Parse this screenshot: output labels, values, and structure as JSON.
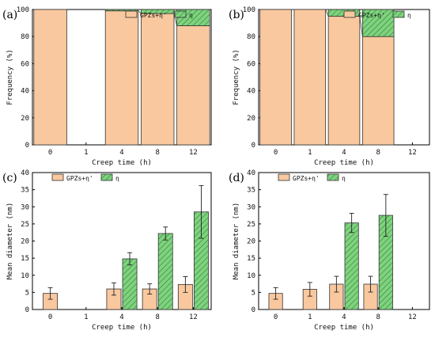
{
  "colors": {
    "orange": "#F9C89F",
    "green": "#7FD37F",
    "line": "#333333"
  },
  "chart_data": [
    {
      "type": "bar",
      "stacked": true,
      "panel_label": "(a)",
      "categories": [
        "0",
        "1",
        "4",
        "8",
        "12"
      ],
      "xlabel": "Creep time (h)",
      "ylabel": "Frequency (%)",
      "ylim": [
        0,
        100
      ],
      "yticks": [
        0,
        20,
        40,
        60,
        80,
        100
      ],
      "legend": {
        "position": "top-right"
      },
      "series": [
        {
          "name": "GPZs+η'",
          "values": [
            100,
            0,
            99,
            97,
            88
          ]
        },
        {
          "name": "η",
          "values": [
            0,
            0,
            1,
            3,
            12
          ]
        }
      ]
    },
    {
      "type": "bar",
      "stacked": true,
      "panel_label": "(b)",
      "categories": [
        "0",
        "1",
        "4",
        "8",
        "12"
      ],
      "xlabel": "Creep time (h)",
      "ylabel": "Frequency (%)",
      "ylim": [
        0,
        100
      ],
      "yticks": [
        0,
        20,
        40,
        60,
        80,
        100
      ],
      "legend": {
        "position": "top-right"
      },
      "series": [
        {
          "name": "GPZs+η'",
          "values": [
            100,
            100,
            95,
            80,
            0
          ]
        },
        {
          "name": "η",
          "values": [
            0,
            0,
            5,
            20,
            0
          ]
        }
      ]
    },
    {
      "type": "bar",
      "grouped": true,
      "panel_label": "(c)",
      "categories": [
        "0",
        "1",
        "4",
        "8",
        "12"
      ],
      "xlabel": "Creep time (h)",
      "ylabel": "Mean diameter (nm)",
      "ylim": [
        0,
        40
      ],
      "yticks": [
        0,
        5,
        10,
        15,
        20,
        25,
        30,
        35,
        40
      ],
      "legend": {
        "position": "top-left"
      },
      "series": [
        {
          "name": "GPZs+η'",
          "values": [
            4.7,
            null,
            6.0,
            6.0,
            7.3
          ],
          "errors": [
            1.7,
            null,
            1.8,
            1.5,
            2.3
          ]
        },
        {
          "name": "η",
          "values": [
            null,
            null,
            14.8,
            22.2,
            28.5
          ],
          "errors": [
            null,
            null,
            1.8,
            1.9,
            7.7
          ]
        }
      ]
    },
    {
      "type": "bar",
      "grouped": true,
      "panel_label": "(d)",
      "categories": [
        "0",
        "1",
        "4",
        "8",
        "12"
      ],
      "xlabel": "Creep time (h)",
      "ylabel": "Mean diameter (nm)",
      "ylim": [
        0,
        40
      ],
      "yticks": [
        0,
        5,
        10,
        15,
        20,
        25,
        30,
        35,
        40
      ],
      "legend": {
        "position": "top-left"
      },
      "series": [
        {
          "name": "GPZs+η'",
          "values": [
            4.7,
            5.9,
            7.4,
            7.4,
            null
          ],
          "errors": [
            1.7,
            2.0,
            2.3,
            2.3,
            null
          ]
        },
        {
          "name": "η",
          "values": [
            null,
            null,
            25.3,
            27.5,
            null
          ],
          "errors": [
            null,
            null,
            2.8,
            6.1,
            null
          ]
        }
      ]
    }
  ]
}
